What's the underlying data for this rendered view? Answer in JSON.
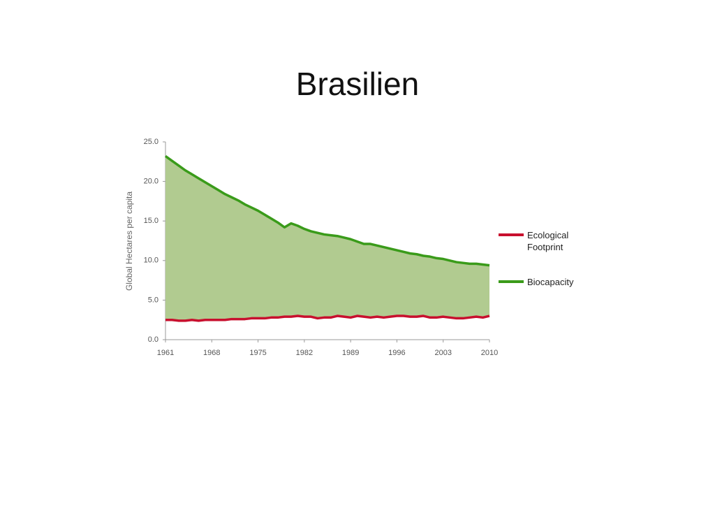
{
  "chart_data": {
    "type": "area-between",
    "title": "Brasilien",
    "y_label": "Global Hectares per capita",
    "x": [
      1961,
      1962,
      1963,
      1964,
      1965,
      1966,
      1967,
      1968,
      1969,
      1970,
      1971,
      1972,
      1973,
      1974,
      1975,
      1976,
      1977,
      1978,
      1979,
      1980,
      1981,
      1982,
      1983,
      1984,
      1985,
      1986,
      1987,
      1988,
      1989,
      1990,
      1991,
      1992,
      1993,
      1994,
      1995,
      1996,
      1997,
      1998,
      1999,
      2000,
      2001,
      2002,
      2003,
      2004,
      2005,
      2006,
      2007,
      2008,
      2009,
      2010
    ],
    "series": [
      {
        "name": "Ecological Footprint",
        "color": "#c8102e",
        "values": [
          2.5,
          2.5,
          2.4,
          2.4,
          2.5,
          2.4,
          2.5,
          2.5,
          2.5,
          2.5,
          2.6,
          2.6,
          2.6,
          2.7,
          2.7,
          2.7,
          2.8,
          2.8,
          2.9,
          2.9,
          3.0,
          2.9,
          2.9,
          2.7,
          2.8,
          2.8,
          3.0,
          2.9,
          2.8,
          3.0,
          2.9,
          2.8,
          2.9,
          2.8,
          2.9,
          3.0,
          3.0,
          2.9,
          2.9,
          3.0,
          2.8,
          2.8,
          2.9,
          2.8,
          2.7,
          2.7,
          2.8,
          2.9,
          2.8,
          3.0
        ]
      },
      {
        "name": "Biocapacity",
        "color": "#3a9b1a",
        "values": [
          23.2,
          22.6,
          22.0,
          21.4,
          20.9,
          20.4,
          19.9,
          19.4,
          18.9,
          18.4,
          18.0,
          17.6,
          17.1,
          16.7,
          16.3,
          15.8,
          15.3,
          14.8,
          14.2,
          14.7,
          14.4,
          14.0,
          13.7,
          13.5,
          13.3,
          13.2,
          13.1,
          12.9,
          12.7,
          12.4,
          12.1,
          12.1,
          11.9,
          11.7,
          11.5,
          11.3,
          11.1,
          10.9,
          10.8,
          10.6,
          10.5,
          10.3,
          10.2,
          10.0,
          9.8,
          9.7,
          9.6,
          9.6,
          9.5,
          9.4
        ]
      }
    ],
    "fill_color": "#b1cb90",
    "xlim": [
      1961,
      2010
    ],
    "xticks": [
      1961,
      1968,
      1975,
      1982,
      1989,
      1996,
      2003,
      2010
    ],
    "ylim": [
      0,
      25
    ],
    "yticks": [
      {
        "value": 0,
        "label": "0.0"
      },
      {
        "value": 5,
        "label": "5.0"
      },
      {
        "value": 10,
        "label": "10.0"
      },
      {
        "value": 15,
        "label": "15.0"
      },
      {
        "value": 20,
        "label": "20.0"
      },
      {
        "value": 25,
        "label": "25.0"
      }
    ],
    "grid": false,
    "legend": "right"
  }
}
